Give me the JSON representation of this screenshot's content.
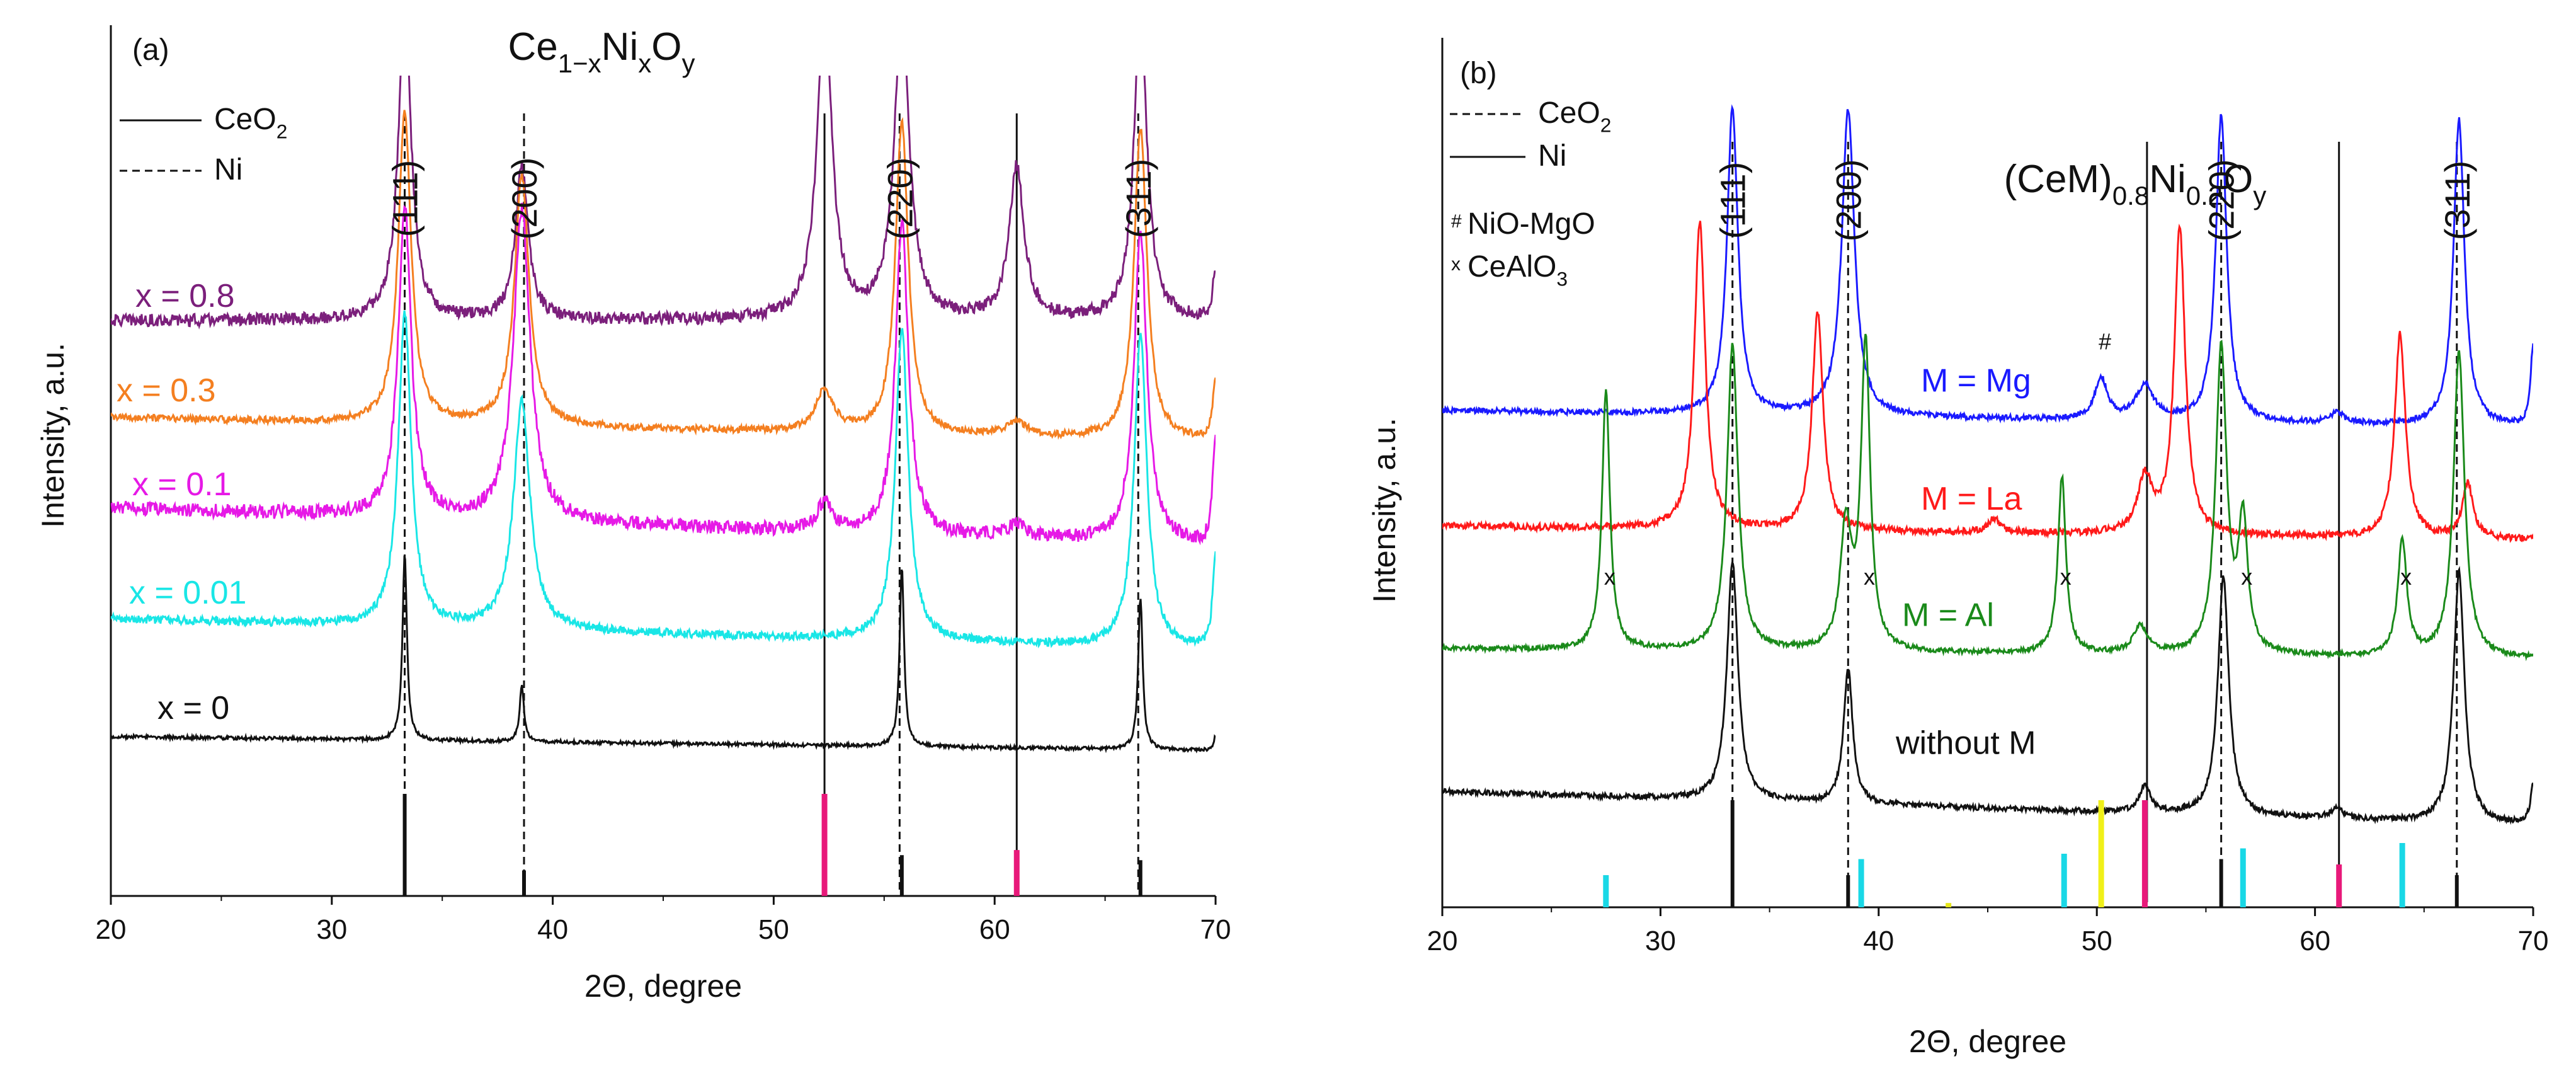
{
  "figure": {
    "panels": [
      "(a)",
      "(b)"
    ]
  },
  "chart_data": [
    {
      "type": "line",
      "panel_label": "(a)",
      "title": "Ce1−xNixOy",
      "title_parts": {
        "base": "Ce",
        "sub1": "1−x",
        "mid": "Ni",
        "sub2": "x",
        "end": "O",
        "sub3": "y"
      },
      "xlabel": "2Θ, degree",
      "ylabel": "Intensity, a.u.",
      "xlim": [
        20,
        70
      ],
      "xticks": [
        20,
        30,
        40,
        50,
        60,
        70
      ],
      "ytick_labels": [],
      "legend": [
        {
          "label": "CeO2",
          "base": "CeO",
          "sub": "2",
          "style": "solid"
        },
        {
          "label": "Ni",
          "base": "Ni",
          "sub": "",
          "style": "dashed"
        }
      ],
      "peak_labels": [
        {
          "text": "(111)",
          "x": 33.3
        },
        {
          "text": "(200)",
          "x": 38.7
        },
        {
          "text": "(220)",
          "x": 55.7
        },
        {
          "text": "(311)",
          "x": 66.5
        }
      ],
      "ref_lines": [
        {
          "x": 33.3,
          "style": "dashed"
        },
        {
          "x": 38.7,
          "style": "dashed"
        },
        {
          "x": 52.3,
          "style": "solid"
        },
        {
          "x": 55.7,
          "style": "dashed"
        },
        {
          "x": 61.0,
          "style": "solid"
        },
        {
          "x": 66.5,
          "style": "dashed"
        }
      ],
      "series": [
        {
          "name": "x = 0.8",
          "color": "#7b1f7b",
          "baseline": 8.3,
          "slope": 0.0,
          "noise": 0.18,
          "peaks": [
            [
              33.3,
              4.5,
              0.35
            ],
            [
              38.6,
              2.2,
              0.35
            ],
            [
              52.3,
              4.5,
              0.4
            ],
            [
              55.8,
              4.5,
              0.4
            ],
            [
              61.0,
              2.2,
              0.4
            ],
            [
              66.6,
              4.5,
              0.35
            ],
            [
              70.0,
              0.7,
              0.15
            ]
          ]
        },
        {
          "name": "x = 0.3",
          "color": "#f47f20",
          "baseline": 6.9,
          "slope": -0.35,
          "noise": 0.1,
          "peaks": [
            [
              33.3,
              4.5,
              0.35
            ],
            [
              38.6,
              3.6,
              0.4
            ],
            [
              52.3,
              0.6,
              0.5
            ],
            [
              55.8,
              4.5,
              0.35
            ],
            [
              61.0,
              0.2,
              0.6
            ],
            [
              66.6,
              4.5,
              0.35
            ],
            [
              70.0,
              0.9,
              0.15
            ]
          ]
        },
        {
          "name": "x = 0.1",
          "color": "#e619e6",
          "baseline": 5.6,
          "slope": -0.55,
          "noise": 0.2,
          "peaks": [
            [
              33.3,
              4.5,
              0.35
            ],
            [
              38.6,
              4.5,
              0.45
            ],
            [
              52.3,
              0.4,
              0.4
            ],
            [
              55.8,
              4.5,
              0.35
            ],
            [
              61.0,
              0.2,
              0.5
            ],
            [
              66.6,
              4.5,
              0.35
            ],
            [
              70.0,
              1.6,
              0.15
            ]
          ]
        },
        {
          "name": "x = 0.01",
          "color": "#19e6e6",
          "baseline": 4.0,
          "slope": -0.45,
          "noise": 0.12,
          "peaks": [
            [
              33.3,
              4.5,
              0.35
            ],
            [
              38.6,
              3.3,
              0.45
            ],
            [
              55.8,
              4.5,
              0.35
            ],
            [
              66.6,
              4.5,
              0.35
            ],
            [
              70.0,
              1.4,
              0.15
            ]
          ]
        },
        {
          "name": "x = 0",
          "color": "#111111",
          "baseline": 2.3,
          "slope": -0.2,
          "noise": 0.05,
          "peaks": [
            [
              33.3,
              2.7,
              0.12
            ],
            [
              38.6,
              0.8,
              0.12
            ],
            [
              55.8,
              2.6,
              0.12
            ],
            [
              66.6,
              2.2,
              0.12
            ],
            [
              70.0,
              0.2,
              0.1
            ]
          ]
        }
      ],
      "reference_bars": [
        {
          "x": 33.3,
          "height": 1.0,
          "color": "#111111"
        },
        {
          "x": 38.7,
          "height": 0.25,
          "color": "#111111"
        },
        {
          "x": 52.3,
          "height": 1.0,
          "color": "#e8197a"
        },
        {
          "x": 55.8,
          "height": 0.4,
          "color": "#111111"
        },
        {
          "x": 61.0,
          "height": 0.45,
          "color": "#e8197a"
        },
        {
          "x": 66.6,
          "height": 0.35,
          "color": "#111111"
        }
      ]
    },
    {
      "type": "line",
      "panel_label": "(b)",
      "title": "(CeM)0.8Ni0.2Oy",
      "title_parts": {
        "base": "(CeM)",
        "sub1": "0.8",
        "mid": "Ni",
        "sub2": "0.2",
        "end": "O",
        "sub3": "y"
      },
      "xlabel": "2Θ, degree",
      "ylabel": "Intensity, a.u.",
      "xlim": [
        20,
        70
      ],
      "xticks": [
        20,
        30,
        40,
        50,
        60,
        70
      ],
      "ytick_labels": [],
      "legend": [
        {
          "label": "CeO2",
          "base": "CeO",
          "sub": "2",
          "style": "dashed"
        },
        {
          "label": "Ni",
          "base": "Ni",
          "sub": "",
          "style": "solid"
        }
      ],
      "phase_legend": [
        {
          "symbol": "#",
          "label": "NiO-MgO",
          "base": "NiO-MgO",
          "sub": ""
        },
        {
          "symbol": "x",
          "label": "CeAlO3",
          "base": "CeAlO",
          "sub": "3"
        }
      ],
      "peak_labels": [
        {
          "text": "(111)",
          "x": 33.3
        },
        {
          "text": "(200)",
          "x": 38.6
        },
        {
          "text": "(220)",
          "x": 55.7
        },
        {
          "text": "(311)",
          "x": 66.5
        }
      ],
      "ref_lines": [
        {
          "x": 33.3,
          "style": "dashed"
        },
        {
          "x": 38.6,
          "style": "dashed"
        },
        {
          "x": 52.3,
          "style": "solid"
        },
        {
          "x": 55.7,
          "style": "dashed"
        },
        {
          "x": 61.1,
          "style": "solid"
        },
        {
          "x": 66.5,
          "style": "dashed"
        }
      ],
      "series": [
        {
          "name": "M = Mg",
          "color": "#1a1aff",
          "baseline": 7.3,
          "slope": -0.25,
          "noise": 0.08,
          "peaks": [
            [
              33.3,
              4.5,
              0.3
            ],
            [
              38.6,
              4.5,
              0.35
            ],
            [
              50.2,
              0.6,
              0.35
            ],
            [
              52.2,
              0.5,
              0.5
            ],
            [
              55.7,
              4.5,
              0.3
            ],
            [
              61.0,
              0.15,
              0.4
            ],
            [
              66.6,
              4.5,
              0.3
            ],
            [
              70.0,
              1.2,
              0.15
            ]
          ]
        },
        {
          "name": "M = La",
          "color": "#ff1a1a",
          "baseline": 5.6,
          "slope": -0.2,
          "noise": 0.1,
          "peaks": [
            [
              31.8,
              4.5,
              0.3
            ],
            [
              37.2,
              3.2,
              0.3
            ],
            [
              45.3,
              0.2,
              0.3
            ],
            [
              52.2,
              0.8,
              0.4
            ],
            [
              53.8,
              4.5,
              0.3
            ],
            [
              63.9,
              3.0,
              0.3
            ],
            [
              67.0,
              0.8,
              0.3
            ]
          ]
        },
        {
          "name": "M = Al",
          "color": "#1a8a1a",
          "baseline": 3.8,
          "slope": -0.15,
          "noise": 0.07,
          "peaks": [
            [
              27.5,
              3.8,
              0.22
            ],
            [
              33.3,
              4.5,
              0.3
            ],
            [
              38.5,
              1.8,
              0.3
            ],
            [
              39.4,
              4.5,
              0.25
            ],
            [
              48.4,
              2.6,
              0.22
            ],
            [
              52.0,
              0.4,
              0.4
            ],
            [
              55.7,
              4.5,
              0.3
            ],
            [
              56.7,
              1.9,
              0.25
            ],
            [
              64.0,
              1.7,
              0.25
            ],
            [
              66.6,
              4.5,
              0.3
            ]
          ]
        },
        {
          "name": "without M",
          "color": "#111111",
          "baseline": 1.7,
          "slope": -0.5,
          "noise": 0.08,
          "peaks": [
            [
              33.3,
              3.5,
              0.3
            ],
            [
              38.6,
              2.0,
              0.25
            ],
            [
              52.2,
              0.4,
              0.3
            ],
            [
              55.8,
              3.5,
              0.3
            ],
            [
              61.0,
              0.15,
              0.35
            ],
            [
              66.6,
              3.7,
              0.3
            ],
            [
              70.0,
              0.6,
              0.15
            ]
          ]
        }
      ],
      "phase_marks": [
        {
          "text": "#",
          "x": 50.2,
          "series": "M = Mg"
        },
        {
          "text": "x",
          "x": 27.5,
          "series": "M = Al"
        },
        {
          "text": "x",
          "x": 39.4,
          "series": "M = Al"
        },
        {
          "text": "x",
          "x": 48.4,
          "series": "M = Al"
        },
        {
          "text": "x",
          "x": 56.7,
          "series": "M = Al"
        },
        {
          "text": "x",
          "x": 64.0,
          "series": "M = Al"
        }
      ],
      "reference_bars": [
        {
          "x": 27.5,
          "height": 0.3,
          "color": "#19d8e6"
        },
        {
          "x": 33.3,
          "height": 1.0,
          "color": "#111111"
        },
        {
          "x": 38.6,
          "height": 0.3,
          "color": "#111111"
        },
        {
          "x": 39.2,
          "height": 0.45,
          "color": "#19d8e6"
        },
        {
          "x": 43.2,
          "height": 0.04,
          "color": "#e6e619"
        },
        {
          "x": 48.5,
          "height": 0.5,
          "color": "#19d8e6"
        },
        {
          "x": 50.2,
          "height": 1.0,
          "color": "#f0f019"
        },
        {
          "x": 52.2,
          "height": 1.0,
          "color": "#e8197a"
        },
        {
          "x": 55.7,
          "height": 0.45,
          "color": "#111111"
        },
        {
          "x": 56.7,
          "height": 0.55,
          "color": "#19d8e6"
        },
        {
          "x": 61.1,
          "height": 0.4,
          "color": "#e8197a"
        },
        {
          "x": 64.0,
          "height": 0.6,
          "color": "#19d8e6"
        },
        {
          "x": 66.5,
          "height": 0.3,
          "color": "#111111"
        }
      ]
    }
  ]
}
